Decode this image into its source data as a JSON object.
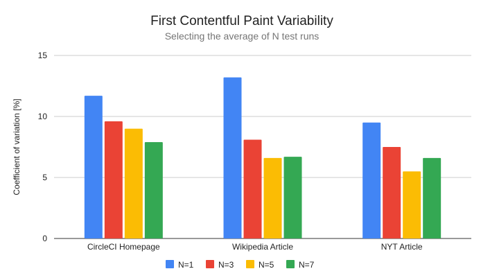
{
  "chart_data": {
    "type": "bar",
    "title": "First Contentful Paint Variability",
    "subtitle": "Selecting the average of N test runs",
    "xlabel": "",
    "ylabel": "Coefficient of variation [%]",
    "ylim": [
      0,
      15
    ],
    "yticks": [
      "0",
      "5",
      "10",
      "15"
    ],
    "grid": true,
    "legend_position": "bottom",
    "categories": [
      "CircleCI Homepage",
      "Wikipedia Article",
      "NYT Article"
    ],
    "series": [
      {
        "name": "N=1",
        "color": "#4285f4",
        "values": [
          11.7,
          13.2,
          9.5
        ]
      },
      {
        "name": "N=3",
        "color": "#ea4335",
        "values": [
          9.6,
          8.1,
          7.5
        ]
      },
      {
        "name": "N=5",
        "color": "#fbbc04",
        "values": [
          9.0,
          6.6,
          5.5
        ]
      },
      {
        "name": "N=7",
        "color": "#34a853",
        "values": [
          7.9,
          6.7,
          6.6
        ]
      }
    ]
  }
}
